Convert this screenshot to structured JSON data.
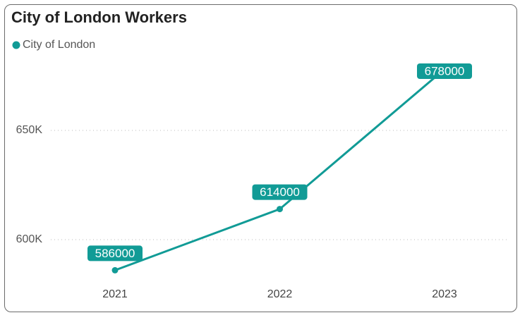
{
  "chart_data": {
    "type": "line",
    "title": "City of London Workers",
    "categories": [
      "2021",
      "2022",
      "2023"
    ],
    "series": [
      {
        "name": "City of London",
        "color": "#119b96",
        "values": [
          586000,
          614000,
          678000
        ]
      }
    ],
    "ylim": [
      580000,
      690000
    ],
    "yticks": [
      {
        "value": 600000,
        "label": "600K"
      },
      {
        "value": 650000,
        "label": "650K"
      }
    ],
    "grid": true
  }
}
